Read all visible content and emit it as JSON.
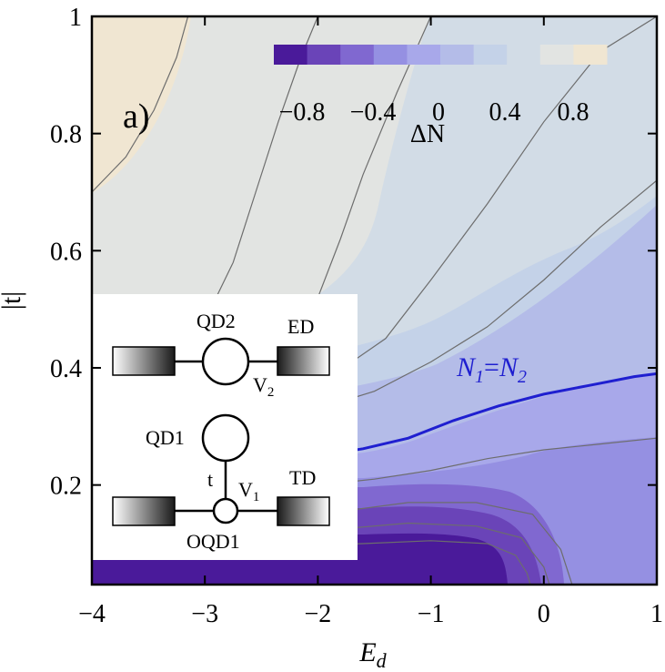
{
  "chart_data": {
    "type": "heatmap",
    "panel_label": "a)",
    "xlabel": "E",
    "xlabel_sub": "d",
    "ylabel": "|t|",
    "xlim": [
      -4,
      1
    ],
    "ylim": [
      0.03,
      1
    ],
    "xticks": [
      -4,
      -3,
      -2,
      -1,
      0,
      1
    ],
    "xtick_labels": [
      "−4",
      "−3",
      "−2",
      "−1",
      "0",
      "1"
    ],
    "yticks": [
      0.2,
      0.4,
      0.6,
      0.8,
      1
    ],
    "ytick_labels": [
      "0.2",
      "0.4",
      "0.6",
      "0.8",
      "1"
    ],
    "colorbar": {
      "label": "ΔN",
      "tick_labels": [
        "−0.8",
        "−0.4",
        "0",
        "0.4",
        "0.8"
      ],
      "levels": [
        -1,
        -0.8,
        -0.6,
        -0.4,
        -0.2,
        0,
        0.2,
        0.4,
        0.6,
        0.8,
        1
      ],
      "colors": [
        "#4a1a9a",
        "#6a44b8",
        "#8068d0",
        "#9590e2",
        "#a8a8ea",
        "#b4bce8",
        "#c4d2e8",
        "#d2dce6",
        "#e2e4e2",
        "#f0e6d2"
      ]
    },
    "annotation_curve": {
      "label_main": "N",
      "label_sub1": "1",
      "label_eq": "=",
      "label_main2": "N",
      "label_sub2": "2",
      "color": "#1f1fd0",
      "x": [
        -2.4,
        -2.0,
        -1.6,
        -1.2,
        -0.8,
        -0.4,
        0.0,
        0.4,
        0.8,
        1.0
      ],
      "y": [
        0.245,
        0.25,
        0.262,
        0.28,
        0.31,
        0.335,
        0.355,
        0.37,
        0.385,
        0.39
      ]
    },
    "contour_lines": [
      {
        "level": 0.8,
        "x": [
          -4.0,
          -3.7,
          -3.45,
          -3.25,
          -3.15
        ],
        "y": [
          0.7,
          0.76,
          0.84,
          0.93,
          1.0
        ]
      },
      {
        "level": 0.6,
        "x": [
          -2.9,
          -2.75,
          -2.55,
          -2.35,
          -2.15,
          -2.0
        ],
        "y": [
          0.52,
          0.58,
          0.7,
          0.82,
          0.93,
          1.0
        ]
      },
      {
        "level": 0.4,
        "x": [
          -2.3,
          -2.0,
          -1.8,
          -1.6,
          -1.3,
          -1.0
        ],
        "y": [
          0.44,
          0.52,
          0.62,
          0.73,
          0.87,
          1.0
        ]
      },
      {
        "level": 0.2,
        "x": [
          -2.1,
          -1.7,
          -1.4,
          -1.0,
          -0.5,
          0.0,
          0.5,
          1.0
        ],
        "y": [
          0.38,
          0.41,
          0.45,
          0.55,
          0.68,
          0.82,
          0.94,
          1.0
        ]
      },
      {
        "level": 0.0,
        "x": [
          -2.0,
          -1.5,
          -1.0,
          -0.5,
          0.0,
          0.5,
          1.0
        ],
        "y": [
          0.33,
          0.36,
          0.41,
          0.47,
          0.55,
          0.64,
          0.72
        ]
      },
      {
        "level": -0.2,
        "x": [
          -2.4,
          -2.0,
          -1.5,
          -1.0,
          -0.5,
          0.0,
          0.5,
          1.0
        ],
        "y": [
          0.2,
          0.2,
          0.21,
          0.225,
          0.245,
          0.26,
          0.27,
          0.28
        ]
      },
      {
        "level": -0.4,
        "x": [
          -2.4,
          -1.8,
          -1.2,
          -0.6,
          -0.1,
          0.15,
          0.25
        ],
        "y": [
          0.15,
          0.155,
          0.17,
          0.17,
          0.15,
          0.09,
          0.03
        ]
      },
      {
        "level": -0.6,
        "x": [
          -2.4,
          -1.8,
          -1.2,
          -0.6,
          -0.2,
          0.0,
          0.05
        ],
        "y": [
          0.12,
          0.125,
          0.135,
          0.13,
          0.11,
          0.06,
          0.03
        ]
      },
      {
        "level": -0.8,
        "x": [
          -2.4,
          -1.6,
          -1.0,
          -0.5,
          -0.25,
          -0.15,
          -0.12
        ],
        "y": [
          0.095,
          0.1,
          0.105,
          0.1,
          0.08,
          0.05,
          0.03
        ]
      }
    ]
  },
  "inset": {
    "qd2": "QD2",
    "ed": "ED",
    "v2_main": "V",
    "v2_sub": "2",
    "qd1": "QD1",
    "t": "t",
    "v1_main": "V",
    "v1_sub": "1",
    "td": "TD",
    "oqd1": "OQD1"
  }
}
